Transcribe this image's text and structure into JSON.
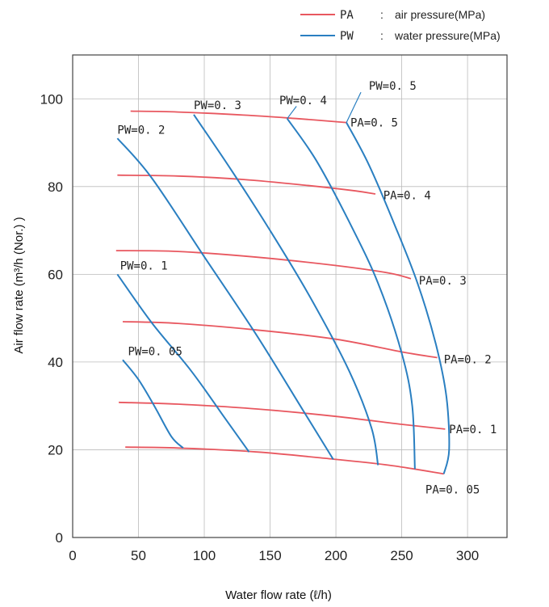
{
  "legend": {
    "items": [
      {
        "code": "PA",
        "sep": ":",
        "desc": "air pressure(MPa)",
        "color": "#e8575f"
      },
      {
        "code": "PW",
        "sep": ":",
        "desc": "water pressure(MPa)",
        "color": "#2a7fc1"
      }
    ]
  },
  "chart_data": {
    "type": "line",
    "xlabel": "Water flow rate (ℓ/h)",
    "ylabel": "Air flow rate (m³/h (Nor.) )",
    "xlim": [
      0,
      330
    ],
    "ylim": [
      0,
      110
    ],
    "xticks": [
      0,
      50,
      100,
      150,
      200,
      250,
      300
    ],
    "yticks": [
      0,
      20,
      40,
      60,
      80,
      100
    ],
    "grid": true,
    "legend_position": "top-right",
    "pa_series": [
      {
        "name": "PA=0.05",
        "color": "#e8575f",
        "points": [
          [
            40,
            20.6
          ],
          [
            80,
            20.4
          ],
          [
            140,
            19.5
          ],
          [
            200,
            17.8
          ],
          [
            240,
            16.5
          ],
          [
            282,
            14.5
          ]
        ]
      },
      {
        "name": "PA=0.1",
        "color": "#e8575f",
        "points": [
          [
            35,
            30.8
          ],
          [
            80,
            30.4
          ],
          [
            140,
            29.3
          ],
          [
            200,
            27.6
          ],
          [
            250,
            25.8
          ],
          [
            283,
            24.7
          ]
        ]
      },
      {
        "name": "PA=0.2",
        "color": "#e8575f",
        "points": [
          [
            38,
            49.2
          ],
          [
            80,
            48.8
          ],
          [
            140,
            47.3
          ],
          [
            200,
            45.2
          ],
          [
            250,
            42.3
          ],
          [
            277,
            41.0
          ]
        ]
      },
      {
        "name": "PA=0.3",
        "color": "#e8575f",
        "points": [
          [
            33,
            65.4
          ],
          [
            80,
            65.2
          ],
          [
            140,
            63.9
          ],
          [
            200,
            62.0
          ],
          [
            240,
            60.3
          ],
          [
            257,
            59.0
          ]
        ]
      },
      {
        "name": "PA=0.4",
        "color": "#e8575f",
        "points": [
          [
            34,
            82.6
          ],
          [
            80,
            82.4
          ],
          [
            130,
            81.6
          ],
          [
            180,
            80.2
          ],
          [
            215,
            79.0
          ],
          [
            230,
            78.3
          ]
        ]
      },
      {
        "name": "PA=0.5",
        "color": "#e8575f",
        "points": [
          [
            44,
            97.2
          ],
          [
            80,
            97.0
          ],
          [
            130,
            96.3
          ],
          [
            170,
            95.5
          ],
          [
            208,
            94.6
          ]
        ]
      }
    ],
    "pw_series": [
      {
        "name": "PW=0.05",
        "color": "#2a7fc1",
        "points": [
          [
            38,
            40.5
          ],
          [
            50,
            36.0
          ],
          [
            62,
            30.0
          ],
          [
            75,
            23.0
          ],
          [
            84,
            20.4
          ]
        ]
      },
      {
        "name": "PW=0.1",
        "color": "#2a7fc1",
        "points": [
          [
            34,
            60.0
          ],
          [
            60,
            49.0
          ],
          [
            90,
            38.0
          ],
          [
            115,
            27.5
          ],
          [
            134,
            19.5
          ]
        ]
      },
      {
        "name": "PW=0.2",
        "color": "#2a7fc1",
        "points": [
          [
            34,
            91.0
          ],
          [
            60,
            82.0
          ],
          [
            100,
            64.0
          ],
          [
            140,
            46.0
          ],
          [
            175,
            29.0
          ],
          [
            198,
            17.8
          ]
        ]
      },
      {
        "name": "PW=0.3",
        "color": "#2a7fc1",
        "points": [
          [
            92,
            96.4
          ],
          [
            120,
            84.0
          ],
          [
            150,
            70.0
          ],
          [
            180,
            55.0
          ],
          [
            210,
            38.0
          ],
          [
            227,
            25.0
          ],
          [
            232,
            16.5
          ]
        ]
      },
      {
        "name": "PW=0.4",
        "color": "#2a7fc1",
        "points": [
          [
            163,
            95.5
          ],
          [
            185,
            86.0
          ],
          [
            210,
            72.0
          ],
          [
            232,
            58.0
          ],
          [
            250,
            42.0
          ],
          [
            258,
            30.0
          ],
          [
            260,
            15.6
          ]
        ]
      },
      {
        "name": "PW=0.5",
        "color": "#2a7fc1",
        "points": [
          [
            208,
            94.6
          ],
          [
            225,
            85.0
          ],
          [
            245,
            71.0
          ],
          [
            262,
            58.0
          ],
          [
            276,
            44.0
          ],
          [
            284,
            32.0
          ],
          [
            286,
            20.0
          ],
          [
            282,
            14.5
          ]
        ]
      }
    ],
    "annotations": [
      {
        "text": "PW=0. 05",
        "at": [
          42,
          42.5
        ]
      },
      {
        "text": "PW=0. 1",
        "at": [
          36,
          62.0
        ]
      },
      {
        "text": "PW=0. 2",
        "at": [
          34,
          93.0
        ]
      },
      {
        "text": "PW=0. 3",
        "at": [
          92,
          98.6
        ]
      },
      {
        "text": "PW=0. 4",
        "at": [
          157,
          99.7
        ]
      },
      {
        "text": "PW=0. 5",
        "at": [
          225,
          103.0
        ]
      },
      {
        "text": "PA=0. 5",
        "at": [
          211,
          94.6
        ]
      },
      {
        "text": "PA=0. 4",
        "at": [
          236,
          78.0
        ]
      },
      {
        "text": "PA=0. 3",
        "at": [
          263,
          58.6
        ]
      },
      {
        "text": "PA=0. 2",
        "at": [
          282,
          40.6
        ]
      },
      {
        "text": "PA=0. 1",
        "at": [
          286,
          24.7
        ]
      },
      {
        "text": "PA=0. 05",
        "at": [
          268,
          11.0
        ]
      }
    ]
  }
}
